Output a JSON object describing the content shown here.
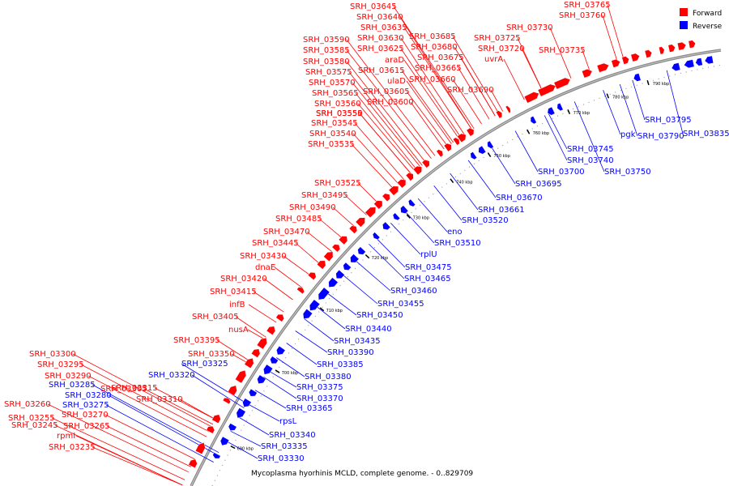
{
  "title": "Mycoplasma hyorhinis MCLD, complete genome. - 0..829709",
  "legend": [
    {
      "label": "Forward",
      "color": "#ff0000"
    },
    {
      "label": "Reverse",
      "color": "#0000ff"
    }
  ],
  "colors": {
    "forward": "#ff0000",
    "reverse": "#0000ff",
    "backbone": "#808080"
  },
  "ticks": [
    "690 kbp",
    "700 kbp",
    "710 kbp",
    "720 kbp",
    "730 kbp",
    "740 kbp",
    "750 kbp",
    "760 kbp",
    "770 kbp",
    "780 kbp",
    "790 kbp"
  ],
  "forward_labels": [
    "SRH_03765",
    "SRH_03760",
    "SRH_03645",
    "SRH_03640",
    "SRH_03635",
    "SRH_03590",
    "SRH_03630",
    "SRH_03685",
    "SRH_03730",
    "SRH_03725",
    "SRH_03585",
    "SRH_03625",
    "SRH_03680",
    "SRH_03720",
    "SRH_03735",
    "SRH_03580",
    "araD",
    "SRH_03675",
    "uvrA",
    "SRH_03575",
    "SRH_03615",
    "SRH_03665",
    "SRH_03570",
    "ulaD",
    "SRH_03660",
    "SRH_03565",
    "SRH_03605",
    "SRH_03690",
    "SRH_03560",
    "SRH_03600",
    "SRH_03555",
    "SRH_03550",
    "SRH_03545",
    "SRH_03540",
    "SRH_03535",
    "SRH_03525",
    "SRH_03495",
    "SRH_03490",
    "SRH_03485",
    "SRH_03470",
    "SRH_03445",
    "SRH_03430",
    "dnaE",
    "SRH_03420",
    "SRH_03415",
    "infB",
    "SRH_03405",
    "nusA",
    "SRH_03395",
    "SRH_03350",
    "SRH_03300",
    "SRH_03295",
    "SRH_03290",
    "SRH_03305",
    "SRH_03315",
    "SRH_03310",
    "SRH_03260",
    "SRH_03270",
    "SRH_03255",
    "SRH_03245",
    "SRH_03265",
    "rpmI",
    "SRH_03235"
  ],
  "reverse_labels": [
    "SRH_03795",
    "pgk",
    "SRH_03790",
    "SRH_03835",
    "SRH_03745",
    "SRH_03740",
    "SRH_03750",
    "SRH_03700",
    "SRH_03695",
    "SRH_03670",
    "SRH_03661",
    "SRH_03520",
    "eno",
    "SRH_03510",
    "rplU",
    "SRH_03475",
    "SRH_03465",
    "SRH_03460",
    "SRH_03455",
    "SRH_03450",
    "SRH_03440",
    "SRH_03435",
    "SRH_03390",
    "SRH_03385",
    "SRH_03380",
    "SRH_03375",
    "SRH_03370",
    "SRH_03365",
    "rpsL",
    "SRH_03340",
    "SRH_03335",
    "SRH_03330",
    "SRH_03325",
    "SRH_03320",
    "SRH_03285",
    "SRH_03280",
    "SRH_03275"
  ]
}
